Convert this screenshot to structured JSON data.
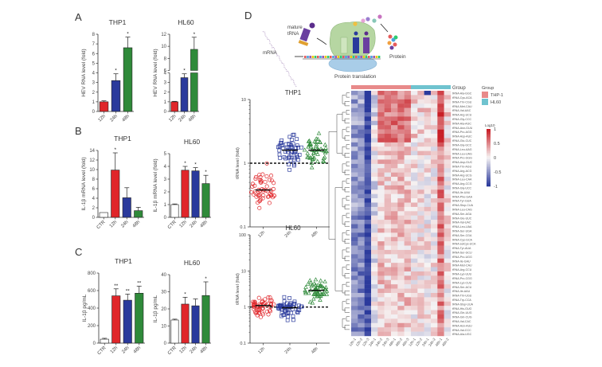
{
  "panels": {
    "A": "A",
    "B": "B",
    "C": "C",
    "D": "D"
  },
  "colors": {
    "t12": "#e0262a",
    "t24": "#2a3a9c",
    "t48": "#2f8a3a",
    "ctr": "#ffffff",
    "thp1": "#e88a8a",
    "hl60": "#6fc3cf",
    "heat_high": "#c81e26",
    "heat_mid": "#f6f3f3",
    "heat_low": "#2b3a9c"
  },
  "diagram": {
    "labels": [
      "mature",
      "tRNA",
      "mRNA",
      "Protein",
      "Protein translation"
    ]
  },
  "chart_data": [
    {
      "id": "A-THP1",
      "type": "bar",
      "title": "THP1",
      "ylabel": "HEV RNA level (fold)",
      "ylim": [
        0,
        8
      ],
      "yticks": [
        0,
        1,
        2,
        3,
        4,
        5,
        6,
        7,
        8
      ],
      "categories": [
        "12h",
        "24h",
        "48h"
      ],
      "values": [
        1.0,
        3.2,
        6.6
      ],
      "errors": [
        0.1,
        0.7,
        1.1
      ],
      "sig": [
        "",
        "*",
        "*"
      ]
    },
    {
      "id": "A-HL60",
      "type": "bar",
      "title": "HL60",
      "ylabel": "HEV RNA level (fold)",
      "axis_break": [
        4,
        6
      ],
      "ylim": [
        0,
        12
      ],
      "yticks": [
        0,
        1,
        2,
        3,
        4,
        6,
        8,
        10,
        12
      ],
      "categories": [
        "12h",
        "24h",
        "48h"
      ],
      "values": [
        1.0,
        3.5,
        9.5
      ],
      "errors": [
        0.05,
        0.4,
        2.0
      ],
      "sig": [
        "",
        "*",
        "*"
      ]
    },
    {
      "id": "B-THP1",
      "type": "bar",
      "title": "THP1",
      "ylabel": "IL-1β mRNA level (fold)",
      "ylim": [
        0,
        14
      ],
      "yticks": [
        0,
        2,
        4,
        6,
        8,
        10,
        12,
        14
      ],
      "categories": [
        "CTR",
        "12h",
        "24h",
        "48h"
      ],
      "values": [
        1.0,
        9.9,
        4.1,
        1.4
      ],
      "errors": [
        0,
        3.6,
        2.1,
        0.7
      ],
      "sig": [
        "",
        "*",
        "",
        ""
      ]
    },
    {
      "id": "B-HL60",
      "type": "bar",
      "title": "HL60",
      "ylabel": "IL-1β mRNA level (fold)",
      "ylim": [
        0,
        5
      ],
      "yticks": [
        0,
        1,
        2,
        3,
        4,
        5
      ],
      "categories": [
        "CTR",
        "12h",
        "24h",
        "48h"
      ],
      "values": [
        1.0,
        3.7,
        3.65,
        2.65
      ],
      "errors": [
        0.05,
        0.3,
        0.25,
        0.65
      ],
      "sig": [
        "",
        "*",
        "*",
        "*"
      ]
    },
    {
      "id": "C-THP1",
      "type": "bar",
      "title": "THP1",
      "ylabel": "IL-1β pg/mL",
      "ylim": [
        0,
        800
      ],
      "yticks": [
        0,
        200,
        400,
        600,
        800
      ],
      "categories": [
        "CTR",
        "12h",
        "24h",
        "48h"
      ],
      "values": [
        45,
        540,
        490,
        570
      ],
      "errors": [
        10,
        80,
        70,
        80
      ],
      "sig": [
        "",
        "**",
        "**",
        "**"
      ]
    },
    {
      "id": "C-HL60",
      "type": "bar",
      "title": "HL60",
      "ylabel": "IL-1β pg/mL",
      "ylim": [
        0,
        40
      ],
      "yticks": [
        0,
        10,
        20,
        30,
        40
      ],
      "categories": [
        "CTR",
        "12h",
        "24h",
        "48h"
      ],
      "values": [
        13.5,
        22.8,
        21.8,
        27.8
      ],
      "errors": [
        0.5,
        4,
        4,
        8
      ],
      "sig": [
        "",
        "*",
        "",
        "*"
      ]
    },
    {
      "id": "D-THP1",
      "type": "scatter",
      "title": "THP1",
      "ylabel": "tRNA level (fold)",
      "yscale": "log",
      "ylim": [
        0.1,
        10
      ],
      "yticks": [
        0.1,
        1,
        10
      ],
      "reference_line": 1,
      "categories": [
        "12h",
        "24h",
        "48h"
      ],
      "medians": [
        0.38,
        1.6,
        1.6
      ],
      "ranges": [
        [
          0.18,
          1.4
        ],
        [
          0.6,
          4.5
        ],
        [
          0.65,
          3.2
        ]
      ]
    },
    {
      "id": "D-HL60",
      "type": "scatter",
      "title": "HL60",
      "ylabel": "tRNA level (fold)",
      "yscale": "log",
      "ylim": [
        0.1,
        100
      ],
      "yticks": [
        0.1,
        1,
        10,
        100
      ],
      "reference_line": 1,
      "categories": [
        "12h",
        "24h",
        "48h"
      ],
      "medians": [
        1.1,
        0.95,
        2.9
      ],
      "ranges": [
        [
          0.4,
          2.3
        ],
        [
          0.3,
          2.1
        ],
        [
          1.1,
          11
        ]
      ]
    },
    {
      "id": "D-heatmap",
      "type": "heatmap",
      "legend_title": "Group",
      "groups": [
        {
          "name": "THP-1",
          "count": 9
        },
        {
          "name": "HL60",
          "count": 6
        }
      ],
      "scale_title": "Log10",
      "scale_ticks": [
        1,
        0.5,
        0,
        -0.5,
        -1
      ],
      "columns": [
        "12h-1",
        "12h-2",
        "12h-3",
        "24h-1",
        "24h-2",
        "24h-3",
        "48h-1",
        "48h-2",
        "48h-3",
        "12h-1",
        "12h-2",
        "24h-1",
        "24h-2",
        "48h-1",
        "48h-2"
      ],
      "rows": [
        "tRNA-Ala-GGC",
        "tRNA-Cys-ACA",
        "tRNA-Thr-CGU",
        "tRNA-Met-CAU",
        "tRNA-Val-AAC",
        "tRNA-Arg-UCU",
        "tRNA-Gly-CCC",
        "tRNA-Ala-AGC",
        "tRNA-Asn-GUU",
        "tRNA-Pro-AGG",
        "tRNA-Asp-AUC",
        "tRNA-Glu-CUC",
        "tRNA-Gly-GCC",
        "tRNA-Leu-AAG",
        "tRNA-Leu-UAG",
        "tRNA-Pro-GGG",
        "tRNA-Asp-GUC",
        "tRNA-Thr-AGU",
        "tRNA-Arg-ACG",
        "tRNA-Arg-UCG",
        "tRNA-Leu-CAA",
        "tRNA-Arg-CCG",
        "tRNA-Gly-UCC",
        "tRNA-Ile-UAU",
        "tRNA-Phe-GAA",
        "tRNA-Tyr-GUA",
        "tRNA-Stop-CUA",
        "tRNA-Leu-CAG",
        "tRNA-Ser-AGA",
        "tRNA-Glu-UUC",
        "tRNA-Val-UAC",
        "tRNA-Leu-UAA",
        "tRNA-Ser-UGA",
        "tRNA-Ser-CGA",
        "tRNA-Cys-GCA",
        "tRNA-selCys-UCA",
        "tRNA-Tyr-AUA",
        "tRNA-Ser-GCU",
        "tRNA-Pro-UGG",
        "tRNA-Ile-GAU",
        "tRNA-Met-CAU",
        "tRNA-Arg-CCU",
        "tRNA-Lys-UUU",
        "tRNA-Pro-CGG",
        "tRNA-Lys-CUU",
        "tRNA-Ser-ACU",
        "tRNA-Ile-AAU",
        "tRNA-Thr-UGU",
        "tRNA-Trp-CCA",
        "tRNA-Stop-UUA",
        "tRNA-His-GUG",
        "tRNA-Gln-UUG",
        "tRNA-Gln-CUG",
        "tRNA-Val-CAC",
        "tRNA-Asn-AUU",
        "tRNA-Val-CCC",
        "tRNA-Ala-UGC"
      ],
      "row_trend": "upper cluster: THP-1 12h strongly low (blue), THP-1 24h/48h and HL60 48h high (red); lower cluster: 12h low, others mildly elevated"
    }
  ]
}
